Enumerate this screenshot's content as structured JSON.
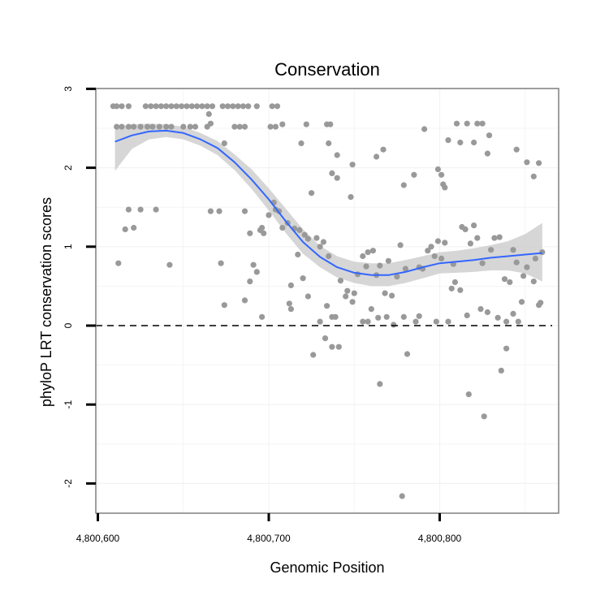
{
  "chart_data": {
    "type": "scatter",
    "title": "Conservation",
    "xlabel": "Genomic Position",
    "ylabel": "phyloP LRT conservation scores",
    "xlim": [
      4800600,
      4800870
    ],
    "ylim": [
      -2.35,
      3
    ],
    "x_ticks": [
      {
        "value": 4800600,
        "label": "4,800,600"
      },
      {
        "value": 4800700,
        "label": "4,800,700"
      },
      {
        "value": 4800800,
        "label": "4,800,800"
      }
    ],
    "y_ticks": [
      {
        "value": 3,
        "label": "3"
      },
      {
        "value": 2,
        "label": "2"
      },
      {
        "value": 1,
        "label": "1"
      },
      {
        "value": 0,
        "label": "0"
      },
      {
        "value": -1,
        "label": "-1"
      },
      {
        "value": -2,
        "label": "-2"
      }
    ],
    "grid": true,
    "reference_line": {
      "y": 0,
      "style": "dashed"
    },
    "colors": {
      "points": "#999999",
      "smooth": "#3366ff",
      "band": "#cccccc",
      "grid": "#f2f2f2",
      "frame": "#7f7f7f"
    },
    "points": [
      [
        4800609,
        2.78
      ],
      [
        4800611,
        2.78
      ],
      [
        4800614,
        2.78
      ],
      [
        4800618,
        2.78
      ],
      [
        4800628,
        2.78
      ],
      [
        4800631,
        2.78
      ],
      [
        4800634,
        2.78
      ],
      [
        4800637,
        2.78
      ],
      [
        4800640,
        2.78
      ],
      [
        4800643,
        2.78
      ],
      [
        4800646,
        2.78
      ],
      [
        4800649,
        2.78
      ],
      [
        4800652,
        2.78
      ],
      [
        4800655,
        2.78
      ],
      [
        4800658,
        2.78
      ],
      [
        4800661,
        2.78
      ],
      [
        4800664,
        2.78
      ],
      [
        4800667,
        2.78
      ],
      [
        4800673,
        2.78
      ],
      [
        4800676,
        2.78
      ],
      [
        4800679,
        2.78
      ],
      [
        4800682,
        2.78
      ],
      [
        4800685,
        2.78
      ],
      [
        4800688,
        2.78
      ],
      [
        4800693,
        2.78
      ],
      [
        4800702,
        2.78
      ],
      [
        4800705,
        2.78
      ],
      [
        4800611,
        2.52
      ],
      [
        4800614,
        2.52
      ],
      [
        4800618,
        2.52
      ],
      [
        4800621,
        2.52
      ],
      [
        4800625,
        2.52
      ],
      [
        4800629,
        2.52
      ],
      [
        4800632,
        2.52
      ],
      [
        4800636,
        2.52
      ],
      [
        4800640,
        2.52
      ],
      [
        4800643,
        2.52
      ],
      [
        4800650,
        2.52
      ],
      [
        4800654,
        2.52
      ],
      [
        4800657,
        2.52
      ],
      [
        4800664,
        2.52
      ],
      [
        4800680,
        2.52
      ],
      [
        4800683,
        2.52
      ],
      [
        4800686,
        2.52
      ],
      [
        4800701,
        2.52
      ],
      [
        4800704,
        2.52
      ],
      [
        4800708,
        2.55
      ],
      [
        4800722,
        2.55
      ],
      [
        4800734,
        2.55
      ],
      [
        4800736,
        2.55
      ],
      [
        4800665,
        2.68
      ],
      [
        4800666,
        2.56
      ],
      [
        4800674,
        2.31
      ],
      [
        4800719,
        2.31
      ],
      [
        4800735,
        2.31
      ],
      [
        4800740,
        2.16
      ],
      [
        4800749,
        2.04
      ],
      [
        4800763,
        2.14
      ],
      [
        4800767,
        2.23
      ],
      [
        4800779,
        1.78
      ],
      [
        4800791,
        2.49
      ],
      [
        4800799,
        1.98
      ],
      [
        4800801,
        1.91
      ],
      [
        4800802,
        1.79
      ],
      [
        4800803,
        1.75
      ],
      [
        4800805,
        2.35
      ],
      [
        4800810,
        2.56
      ],
      [
        4800812,
        2.32
      ],
      [
        4800816,
        2.56
      ],
      [
        4800820,
        2.32
      ],
      [
        4800822,
        2.56
      ],
      [
        4800825,
        2.56
      ],
      [
        4800828,
        2.18
      ],
      [
        4800829,
        2.41
      ],
      [
        4800845,
        2.23
      ],
      [
        4800851,
        2.07
      ],
      [
        4800855,
        1.89
      ],
      [
        4800858,
        2.06
      ],
      [
        4800612,
        0.79
      ],
      [
        4800616,
        1.22
      ],
      [
        4800618,
        1.47
      ],
      [
        4800621,
        1.24
      ],
      [
        4800625,
        1.47
      ],
      [
        4800634,
        1.47
      ],
      [
        4800642,
        0.77
      ],
      [
        4800666,
        1.45
      ],
      [
        4800671,
        1.45
      ],
      [
        4800672,
        0.79
      ],
      [
        4800674,
        0.26
      ],
      [
        4800686,
        1.45
      ],
      [
        4800689,
        1.17
      ],
      [
        4800691,
        0.77
      ],
      [
        4800693,
        0.68
      ],
      [
        4800695,
        1.21
      ],
      [
        4800696,
        1.24
      ],
      [
        4800697,
        1.17
      ],
      [
        4800700,
        1.4
      ],
      [
        4800703,
        1.56
      ],
      [
        4800704,
        1.47
      ],
      [
        4800706,
        1.45
      ],
      [
        4800708,
        1.24
      ],
      [
        4800711,
        1.3
      ],
      [
        4800713,
        0.51
      ],
      [
        4800715,
        1.23
      ],
      [
        4800717,
        0.9
      ],
      [
        4800718,
        1.21
      ],
      [
        4800720,
        0.6
      ],
      [
        4800721,
        1.15
      ],
      [
        4800723,
        1.1
      ],
      [
        4800725,
        1.68
      ],
      [
        4800728,
        1.11
      ],
      [
        4800730,
        1.0
      ],
      [
        4800732,
        1.06
      ],
      [
        4800735,
        0.88
      ],
      [
        4800737,
        1.93
      ],
      [
        4800740,
        1.87
      ],
      [
        4800742,
        0.57
      ],
      [
        4800746,
        0.44
      ],
      [
        4800748,
        1.63
      ],
      [
        4800750,
        0.41
      ],
      [
        4800752,
        0.65
      ],
      [
        4800755,
        0.88
      ],
      [
        4800757,
        0.75
      ],
      [
        4800758,
        0.93
      ],
      [
        4800761,
        0.95
      ],
      [
        4800763,
        0.64
      ],
      [
        4800765,
        0.76
      ],
      [
        4800768,
        0.41
      ],
      [
        4800770,
        0.82
      ],
      [
        4800772,
        0.38
      ],
      [
        4800775,
        0.62
      ],
      [
        4800777,
        1.02
      ],
      [
        4800780,
        0.72
      ],
      [
        4800785,
        1.91
      ],
      [
        4800788,
        0.74
      ],
      [
        4800790,
        0.72
      ],
      [
        4800793,
        0.95
      ],
      [
        4800795,
        1.0
      ],
      [
        4800797,
        0.88
      ],
      [
        4800799,
        1.07
      ],
      [
        4800801,
        0.85
      ],
      [
        4800803,
        1.05
      ],
      [
        4800808,
        0.78
      ],
      [
        4800813,
        1.25
      ],
      [
        4800815,
        1.22
      ],
      [
        4800818,
        1.04
      ],
      [
        4800820,
        1.27
      ],
      [
        4800822,
        1.11
      ],
      [
        4800825,
        0.79
      ],
      [
        4800830,
        0.96
      ],
      [
        4800832,
        1.11
      ],
      [
        4800835,
        1.12
      ],
      [
        4800838,
        0.59
      ],
      [
        4800841,
        0.55
      ],
      [
        4800843,
        0.96
      ],
      [
        4800845,
        0.8
      ],
      [
        4800849,
        0.63
      ],
      [
        4800851,
        0.74
      ],
      [
        4800855,
        0.56
      ],
      [
        4800856,
        0.85
      ],
      [
        4800858,
        0.26
      ],
      [
        4800859,
        0.29
      ],
      [
        4800860,
        0.93
      ],
      [
        4800686,
        0.32
      ],
      [
        4800689,
        0.56
      ],
      [
        4800696,
        0.11
      ],
      [
        4800712,
        0.28
      ],
      [
        4800713,
        0.21
      ],
      [
        4800723,
        0.37
      ],
      [
        4800730,
        0.05
      ],
      [
        4800734,
        0.25
      ],
      [
        4800737,
        0.11
      ],
      [
        4800739,
        0.11
      ],
      [
        4800745,
        0.37
      ],
      [
        4800749,
        0.3
      ],
      [
        4800755,
        0.05
      ],
      [
        4800758,
        0.05
      ],
      [
        4800760,
        0.21
      ],
      [
        4800764,
        0.1
      ],
      [
        4800769,
        0.11
      ],
      [
        4800773,
        0.01
      ],
      [
        4800779,
        0.11
      ],
      [
        4800786,
        0.05
      ],
      [
        4800788,
        0.12
      ],
      [
        4800798,
        0.05
      ],
      [
        4800805,
        0.05
      ],
      [
        4800807,
        0.47
      ],
      [
        4800809,
        0.55
      ],
      [
        4800812,
        0.45
      ],
      [
        4800816,
        0.13
      ],
      [
        4800824,
        0.21
      ],
      [
        4800828,
        0.17
      ],
      [
        4800834,
        0.1
      ],
      [
        4800839,
        0.05
      ],
      [
        4800843,
        0.15
      ],
      [
        4800846,
        0.05
      ],
      [
        4800848,
        0.3
      ],
      [
        4800726,
        -0.37
      ],
      [
        4800733,
        -0.16
      ],
      [
        4800737,
        -0.27
      ],
      [
        4800741,
        -0.27
      ],
      [
        4800765,
        -0.74
      ],
      [
        4800781,
        -0.36
      ],
      [
        4800826,
        -1.15
      ],
      [
        4800817,
        -0.87
      ],
      [
        4800836,
        -0.57
      ],
      [
        4800839,
        -0.29
      ],
      [
        4800778,
        -2.16
      ]
    ],
    "smooth": [
      [
        4800610,
        2.33
      ],
      [
        4800620,
        2.41
      ],
      [
        4800630,
        2.46
      ],
      [
        4800640,
        2.47
      ],
      [
        4800650,
        2.44
      ],
      [
        4800660,
        2.36
      ],
      [
        4800670,
        2.25
      ],
      [
        4800680,
        2.07
      ],
      [
        4800690,
        1.85
      ],
      [
        4800700,
        1.6
      ],
      [
        4800710,
        1.32
      ],
      [
        4800720,
        1.06
      ],
      [
        4800730,
        0.87
      ],
      [
        4800740,
        0.74
      ],
      [
        4800750,
        0.67
      ],
      [
        4800760,
        0.64
      ],
      [
        4800770,
        0.64
      ],
      [
        4800780,
        0.68
      ],
      [
        4800790,
        0.74
      ],
      [
        4800800,
        0.79
      ],
      [
        4800810,
        0.81
      ],
      [
        4800820,
        0.83
      ],
      [
        4800830,
        0.86
      ],
      [
        4800840,
        0.88
      ],
      [
        4800850,
        0.9
      ],
      [
        4800860,
        0.92
      ]
    ],
    "band_upper": [
      [
        4800610,
        2.52
      ],
      [
        4800620,
        2.55
      ],
      [
        4800630,
        2.56
      ],
      [
        4800640,
        2.55
      ],
      [
        4800650,
        2.52
      ],
      [
        4800660,
        2.44
      ],
      [
        4800670,
        2.34
      ],
      [
        4800680,
        2.17
      ],
      [
        4800690,
        1.98
      ],
      [
        4800700,
        1.74
      ],
      [
        4800710,
        1.48
      ],
      [
        4800720,
        1.22
      ],
      [
        4800730,
        1.01
      ],
      [
        4800740,
        0.88
      ],
      [
        4800750,
        0.81
      ],
      [
        4800760,
        0.79
      ],
      [
        4800770,
        0.79
      ],
      [
        4800780,
        0.83
      ],
      [
        4800790,
        0.88
      ],
      [
        4800800,
        0.93
      ],
      [
        4800810,
        0.95
      ],
      [
        4800820,
        0.98
      ],
      [
        4800830,
        1.02
      ],
      [
        4800840,
        1.07
      ],
      [
        4800850,
        1.16
      ],
      [
        4800860,
        1.3
      ]
    ],
    "band_lower": [
      [
        4800610,
        1.96
      ],
      [
        4800620,
        2.24
      ],
      [
        4800630,
        2.36
      ],
      [
        4800640,
        2.39
      ],
      [
        4800650,
        2.36
      ],
      [
        4800660,
        2.28
      ],
      [
        4800670,
        2.16
      ],
      [
        4800680,
        1.97
      ],
      [
        4800690,
        1.73
      ],
      [
        4800700,
        1.46
      ],
      [
        4800710,
        1.17
      ],
      [
        4800720,
        0.91
      ],
      [
        4800730,
        0.74
      ],
      [
        4800740,
        0.61
      ],
      [
        4800750,
        0.54
      ],
      [
        4800760,
        0.5
      ],
      [
        4800770,
        0.5
      ],
      [
        4800780,
        0.54
      ],
      [
        4800790,
        0.6
      ],
      [
        4800800,
        0.66
      ],
      [
        4800810,
        0.67
      ],
      [
        4800820,
        0.68
      ],
      [
        4800830,
        0.7
      ],
      [
        4800840,
        0.7
      ],
      [
        4800850,
        0.66
      ],
      [
        4800860,
        0.56
      ]
    ]
  }
}
